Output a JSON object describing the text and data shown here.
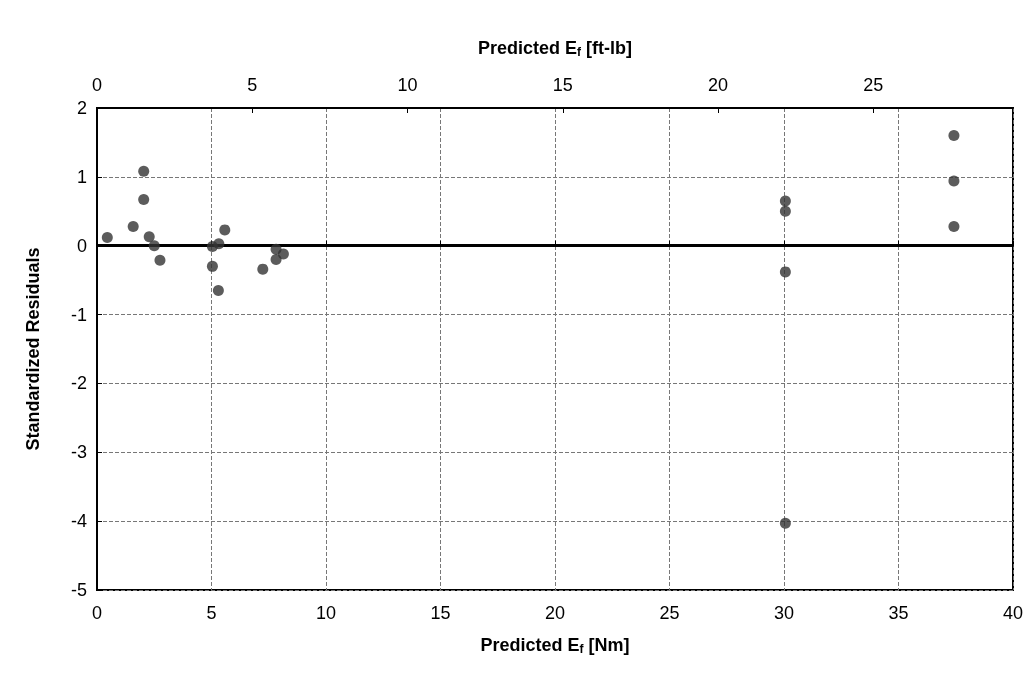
{
  "chart_data": {
    "type": "scatter",
    "xlabel": "Predicted E$_{f}$ [Nm]",
    "x2label": "Predicted E$_{f}$ [ft-lb]",
    "ylabel": "Standardized Residuals",
    "x": [
      0.45,
      1.58,
      2.04,
      2.04,
      2.28,
      2.5,
      2.75,
      5.04,
      5.04,
      5.32,
      5.58,
      5.3,
      7.24,
      7.82,
      7.82,
      8.14,
      30.06,
      30.06,
      30.06,
      30.06,
      37.42,
      37.42,
      37.42
    ],
    "values": [
      0.12,
      0.28,
      1.08,
      0.67,
      0.13,
      0.0,
      -0.21,
      -0.01,
      -0.3,
      0.03,
      0.23,
      -0.65,
      -0.34,
      -0.05,
      -0.2,
      -0.12,
      0.65,
      0.5,
      -0.38,
      -4.03,
      1.6,
      0.94,
      0.28
    ],
    "color": "#333333",
    "marker": "circle",
    "xlim": [
      0,
      40
    ],
    "xticks": [
      0,
      5,
      10,
      15,
      20,
      25,
      30,
      35,
      40
    ],
    "x2lim": [
      0,
      29.5
    ],
    "x2ticks": [
      0,
      5,
      10,
      15,
      20,
      25
    ],
    "ylim": [
      -5,
      2
    ],
    "yticks": [
      -5,
      -4,
      -3,
      -2,
      -1,
      0,
      1,
      2
    ],
    "grid": true,
    "ref_lines": [
      {
        "axis": "y",
        "value": 0,
        "color": "#000000",
        "line_style": "solid"
      }
    ]
  }
}
